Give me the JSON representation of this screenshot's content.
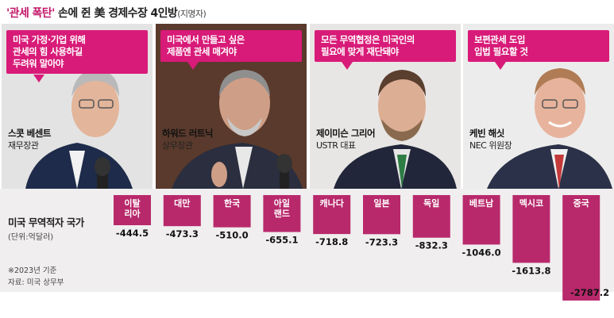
{
  "header": {
    "title_hl": "'관세 폭탄'",
    "title_main": " 손에 쥔 美 경제수장 4인방",
    "title_note": "(지명자)"
  },
  "officials": [
    {
      "quote_line1": "미국 가정·기업 위해",
      "quote_line2": "관세의 힘 사용하길",
      "quote_line3": "두려워 말아야",
      "name": "스콧 베센트",
      "role": "재무장관"
    },
    {
      "quote_line1": "미국에서 만들고 싶은",
      "quote_line2": "제품엔 관세 매겨야",
      "quote_line3": "",
      "name": "하워드 러트닉",
      "role": "상무장관"
    },
    {
      "quote_line1": "모든 무역협정은 미국인의",
      "quote_line2": "필요에 맞게 재단돼야",
      "quote_line3": "",
      "name": "제이미슨 그리어",
      "role": "USTR 대표"
    },
    {
      "quote_line1": "보편관세 도입",
      "quote_line2": "입법 필요할 것",
      "quote_line3": "",
      "name": "케빈 해싯",
      "role": "NEC 위원장"
    }
  ],
  "chart_label": "미국 무역적자 국가",
  "chart_unit": "(단위:억달러)",
  "notes": {
    "basis": "※2023년 기준",
    "source": "자료: 미국 상무부"
  },
  "colors": {
    "accent": "#d81b78",
    "bar": "#b8296b",
    "chart_bg": "#f0eeef"
  },
  "chart_data": {
    "type": "bar",
    "categories": [
      "이탈리아",
      "대만",
      "한국",
      "아일랜드",
      "캐나다",
      "일본",
      "독일",
      "베트남",
      "멕시코",
      "중국"
    ],
    "category_lines": [
      [
        "이탈",
        "리아"
      ],
      [
        "대만"
      ],
      [
        "한국"
      ],
      [
        "아일",
        "랜드"
      ],
      [
        "캐나다"
      ],
      [
        "일본"
      ],
      [
        "독일"
      ],
      [
        "베트남"
      ],
      [
        "멕시코"
      ],
      [
        "중국"
      ]
    ],
    "values": [
      -444.5,
      -473.3,
      -510.0,
      -655.1,
      -718.8,
      -723.3,
      -832.3,
      -1046.0,
      -1613.8,
      -2787.2
    ],
    "value_labels": [
      "-444.5",
      "-473.3",
      "-510.0",
      "-655.1",
      "-718.8",
      "-723.3",
      "-832.3",
      "-1046.0",
      "-1613.8",
      "-2787.2"
    ]
  }
}
